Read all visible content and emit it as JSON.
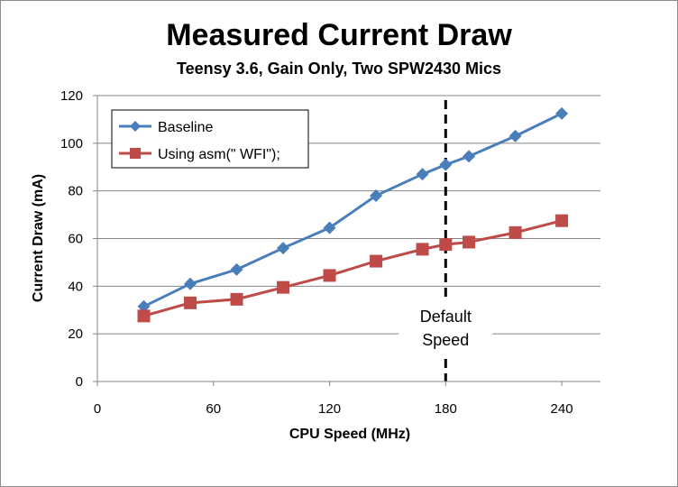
{
  "chart_data": {
    "type": "line",
    "title": "Measured Current Draw",
    "subtitle": "Teensy 3.6, Gain Only, Two SPW2430 Mics",
    "xlabel": "CPU Speed (MHz)",
    "ylabel": "Current Draw (mA)",
    "xlim": [
      0,
      260
    ],
    "ylim": [
      0,
      120
    ],
    "xticks": [
      0,
      60,
      120,
      180,
      240
    ],
    "yticks": [
      0,
      20,
      40,
      60,
      80,
      100,
      120
    ],
    "grid": "horizontal",
    "legend": "top-left",
    "series": [
      {
        "name": "Baseline",
        "color": "#4a7ebb",
        "marker": "diamond",
        "x": [
          24,
          48,
          72,
          96,
          120,
          144,
          168,
          180,
          192,
          216,
          240
        ],
        "y": [
          31.5,
          41,
          47,
          56,
          64.5,
          78,
          87,
          91,
          94.5,
          103,
          112.5
        ]
      },
      {
        "name": "Using asm(\" WFI\");",
        "color": "#be4b48",
        "marker": "square",
        "x": [
          24,
          48,
          72,
          96,
          120,
          144,
          168,
          180,
          192,
          216,
          240
        ],
        "y": [
          27.5,
          33,
          34.5,
          39.5,
          44.5,
          50.5,
          55.5,
          57.5,
          58.5,
          62.5,
          67.5
        ]
      }
    ],
    "annotations": [
      {
        "kind": "vline",
        "x": 180,
        "style": "dashed",
        "text_lines": [
          "Default",
          "Speed"
        ]
      }
    ]
  }
}
